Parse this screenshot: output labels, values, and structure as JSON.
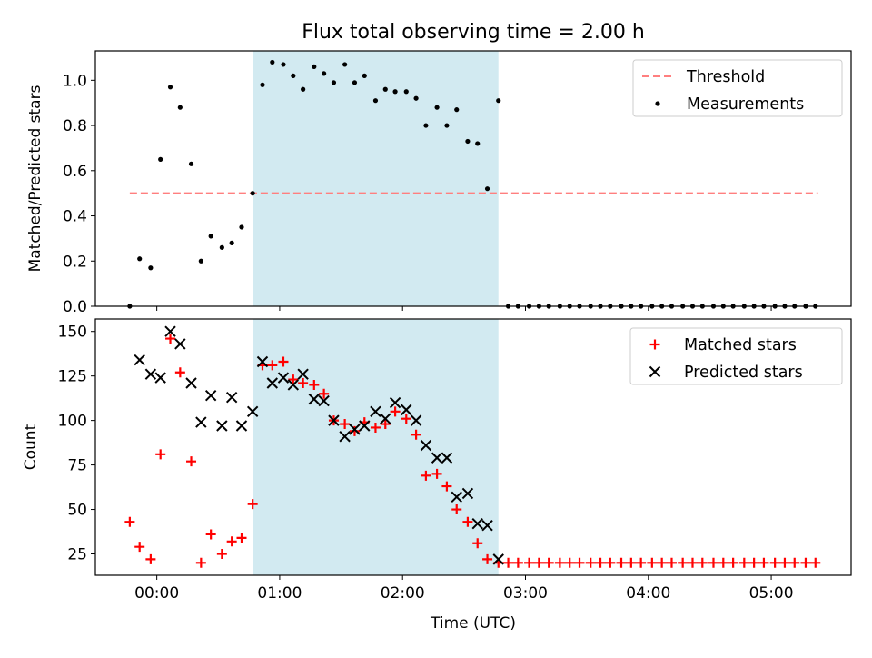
{
  "chart_data": [
    {
      "type": "scatter",
      "title": "Flux total observing time = 2.00 h",
      "xlabel": "",
      "ylabel": "Matched/Predicted stars",
      "ylim": [
        0,
        1.13
      ],
      "y_ticks": [
        "0.0",
        "0.2",
        "0.4",
        "0.6",
        "0.8",
        "1.0"
      ],
      "y_tick_values": [
        0,
        0.2,
        0.4,
        0.6,
        0.8,
        1.0
      ],
      "shaded_span_hours": [
        0.78,
        2.78
      ],
      "shade_color": "#add8e6",
      "legend_position": "upper right",
      "series": [
        {
          "name": "Threshold",
          "kind": "line",
          "style": "dashed",
          "color": "#ff7f7f",
          "x": [
            -0.22,
            5.38
          ],
          "y": [
            0.5,
            0.5
          ]
        },
        {
          "name": "Measurements",
          "kind": "points",
          "marker": "dot",
          "color": "#000000",
          "x": [
            -0.22,
            -0.14,
            -0.05,
            0.03,
            0.11,
            0.19,
            0.28,
            0.36,
            0.44,
            0.53,
            0.61,
            0.69,
            0.78,
            0.86,
            0.94,
            1.03,
            1.11,
            1.19,
            1.28,
            1.36,
            1.44,
            1.53,
            1.61,
            1.69,
            1.78,
            1.86,
            1.94,
            2.03,
            2.11,
            2.19,
            2.28,
            2.36,
            2.44,
            2.53,
            2.61,
            2.69,
            2.78,
            2.86,
            2.94,
            3.03,
            3.11,
            3.19,
            3.28,
            3.36,
            3.44,
            3.53,
            3.61,
            3.69,
            3.78,
            3.86,
            3.94,
            4.03,
            4.11,
            4.19,
            4.28,
            4.36,
            4.44,
            4.53,
            4.61,
            4.69,
            4.78,
            4.86,
            4.94,
            5.03,
            5.11,
            5.19,
            5.28,
            5.36
          ],
          "y": [
            0.0,
            0.21,
            0.17,
            0.65,
            0.97,
            0.88,
            0.63,
            0.2,
            0.31,
            0.26,
            0.28,
            0.35,
            0.5,
            0.98,
            1.08,
            1.07,
            1.02,
            0.96,
            1.06,
            1.03,
            0.99,
            1.07,
            0.99,
            1.02,
            0.91,
            0.96,
            0.95,
            0.95,
            0.92,
            0.8,
            0.88,
            0.8,
            0.87,
            0.73,
            0.72,
            0.52,
            0.91,
            0.0,
            0.0,
            0.0,
            0.0,
            0.0,
            0.0,
            0.0,
            0.0,
            0.0,
            0.0,
            0.0,
            0.0,
            0.0,
            0.0,
            0.0,
            0.0,
            0.0,
            0.0,
            0.0,
            0.0,
            0.0,
            0.0,
            0.0,
            0.0,
            0.0,
            0.0,
            0.0,
            0.0,
            0.0,
            0.0,
            0.0
          ]
        }
      ]
    },
    {
      "type": "scatter",
      "title": "",
      "xlabel": "Time (UTC)",
      "ylabel": "Count",
      "xlim_hours": [
        -0.5,
        5.65
      ],
      "ylim": [
        13,
        157
      ],
      "x_ticks": [
        "00:00",
        "01:00",
        "02:00",
        "03:00",
        "04:00",
        "05:00"
      ],
      "x_tick_values_hours": [
        0,
        1,
        2,
        3,
        4,
        5
      ],
      "y_ticks": [
        "25",
        "50",
        "75",
        "100",
        "125",
        "150"
      ],
      "y_tick_values": [
        25,
        50,
        75,
        100,
        125,
        150
      ],
      "shaded_span_hours": [
        0.78,
        2.78
      ],
      "shade_color": "#add8e6",
      "legend_position": "upper right",
      "series": [
        {
          "name": "Matched stars",
          "marker": "plus",
          "color": "#ff0000",
          "x": [
            -0.22,
            -0.14,
            -0.05,
            0.03,
            0.11,
            0.19,
            0.28,
            0.36,
            0.44,
            0.53,
            0.61,
            0.69,
            0.78,
            0.86,
            0.94,
            1.03,
            1.11,
            1.19,
            1.28,
            1.36,
            1.44,
            1.53,
            1.61,
            1.69,
            1.78,
            1.86,
            1.94,
            2.03,
            2.11,
            2.19,
            2.28,
            2.36,
            2.44,
            2.53,
            2.61,
            2.69,
            2.78,
            2.86,
            2.94,
            3.03,
            3.11,
            3.19,
            3.28,
            3.36,
            3.44,
            3.53,
            3.61,
            3.69,
            3.78,
            3.86,
            3.94,
            4.03,
            4.11,
            4.19,
            4.28,
            4.36,
            4.44,
            4.53,
            4.61,
            4.69,
            4.78,
            4.86,
            4.94,
            5.03,
            5.11,
            5.19,
            5.28,
            5.36
          ],
          "y": [
            43,
            29,
            22,
            81,
            146,
            127,
            77,
            20,
            36,
            25,
            32,
            34,
            53,
            131,
            131,
            133,
            123,
            121,
            120,
            115,
            100,
            98,
            94,
            99,
            96,
            98,
            105,
            101,
            92,
            69,
            70,
            63,
            50,
            43,
            31,
            22,
            20,
            20,
            20,
            20,
            20,
            20,
            20,
            20,
            20,
            20,
            20,
            20,
            20,
            20,
            20,
            20,
            20,
            20,
            20,
            20,
            20,
            20,
            20,
            20,
            20,
            20,
            20,
            20,
            20,
            20,
            20,
            20
          ]
        },
        {
          "name": "Predicted stars",
          "marker": "x",
          "color": "#000000",
          "x": [
            -0.14,
            -0.05,
            0.03,
            0.11,
            0.19,
            0.28,
            0.36,
            0.44,
            0.53,
            0.61,
            0.69,
            0.78,
            0.86,
            0.94,
            1.03,
            1.11,
            1.19,
            1.28,
            1.36,
            1.44,
            1.53,
            1.61,
            1.69,
            1.78,
            1.86,
            1.94,
            2.03,
            2.11,
            2.19,
            2.28,
            2.36,
            2.44,
            2.53,
            2.61,
            2.69,
            2.78
          ],
          "y": [
            134,
            126,
            124,
            150,
            143,
            121,
            99,
            114,
            97,
            113,
            97,
            105,
            133,
            121,
            124,
            120,
            126,
            112,
            111,
            100,
            91,
            95,
            97,
            105,
            101,
            110,
            106,
            100,
            86,
            79,
            79,
            57,
            59,
            42,
            41,
            22
          ]
        }
      ]
    }
  ]
}
